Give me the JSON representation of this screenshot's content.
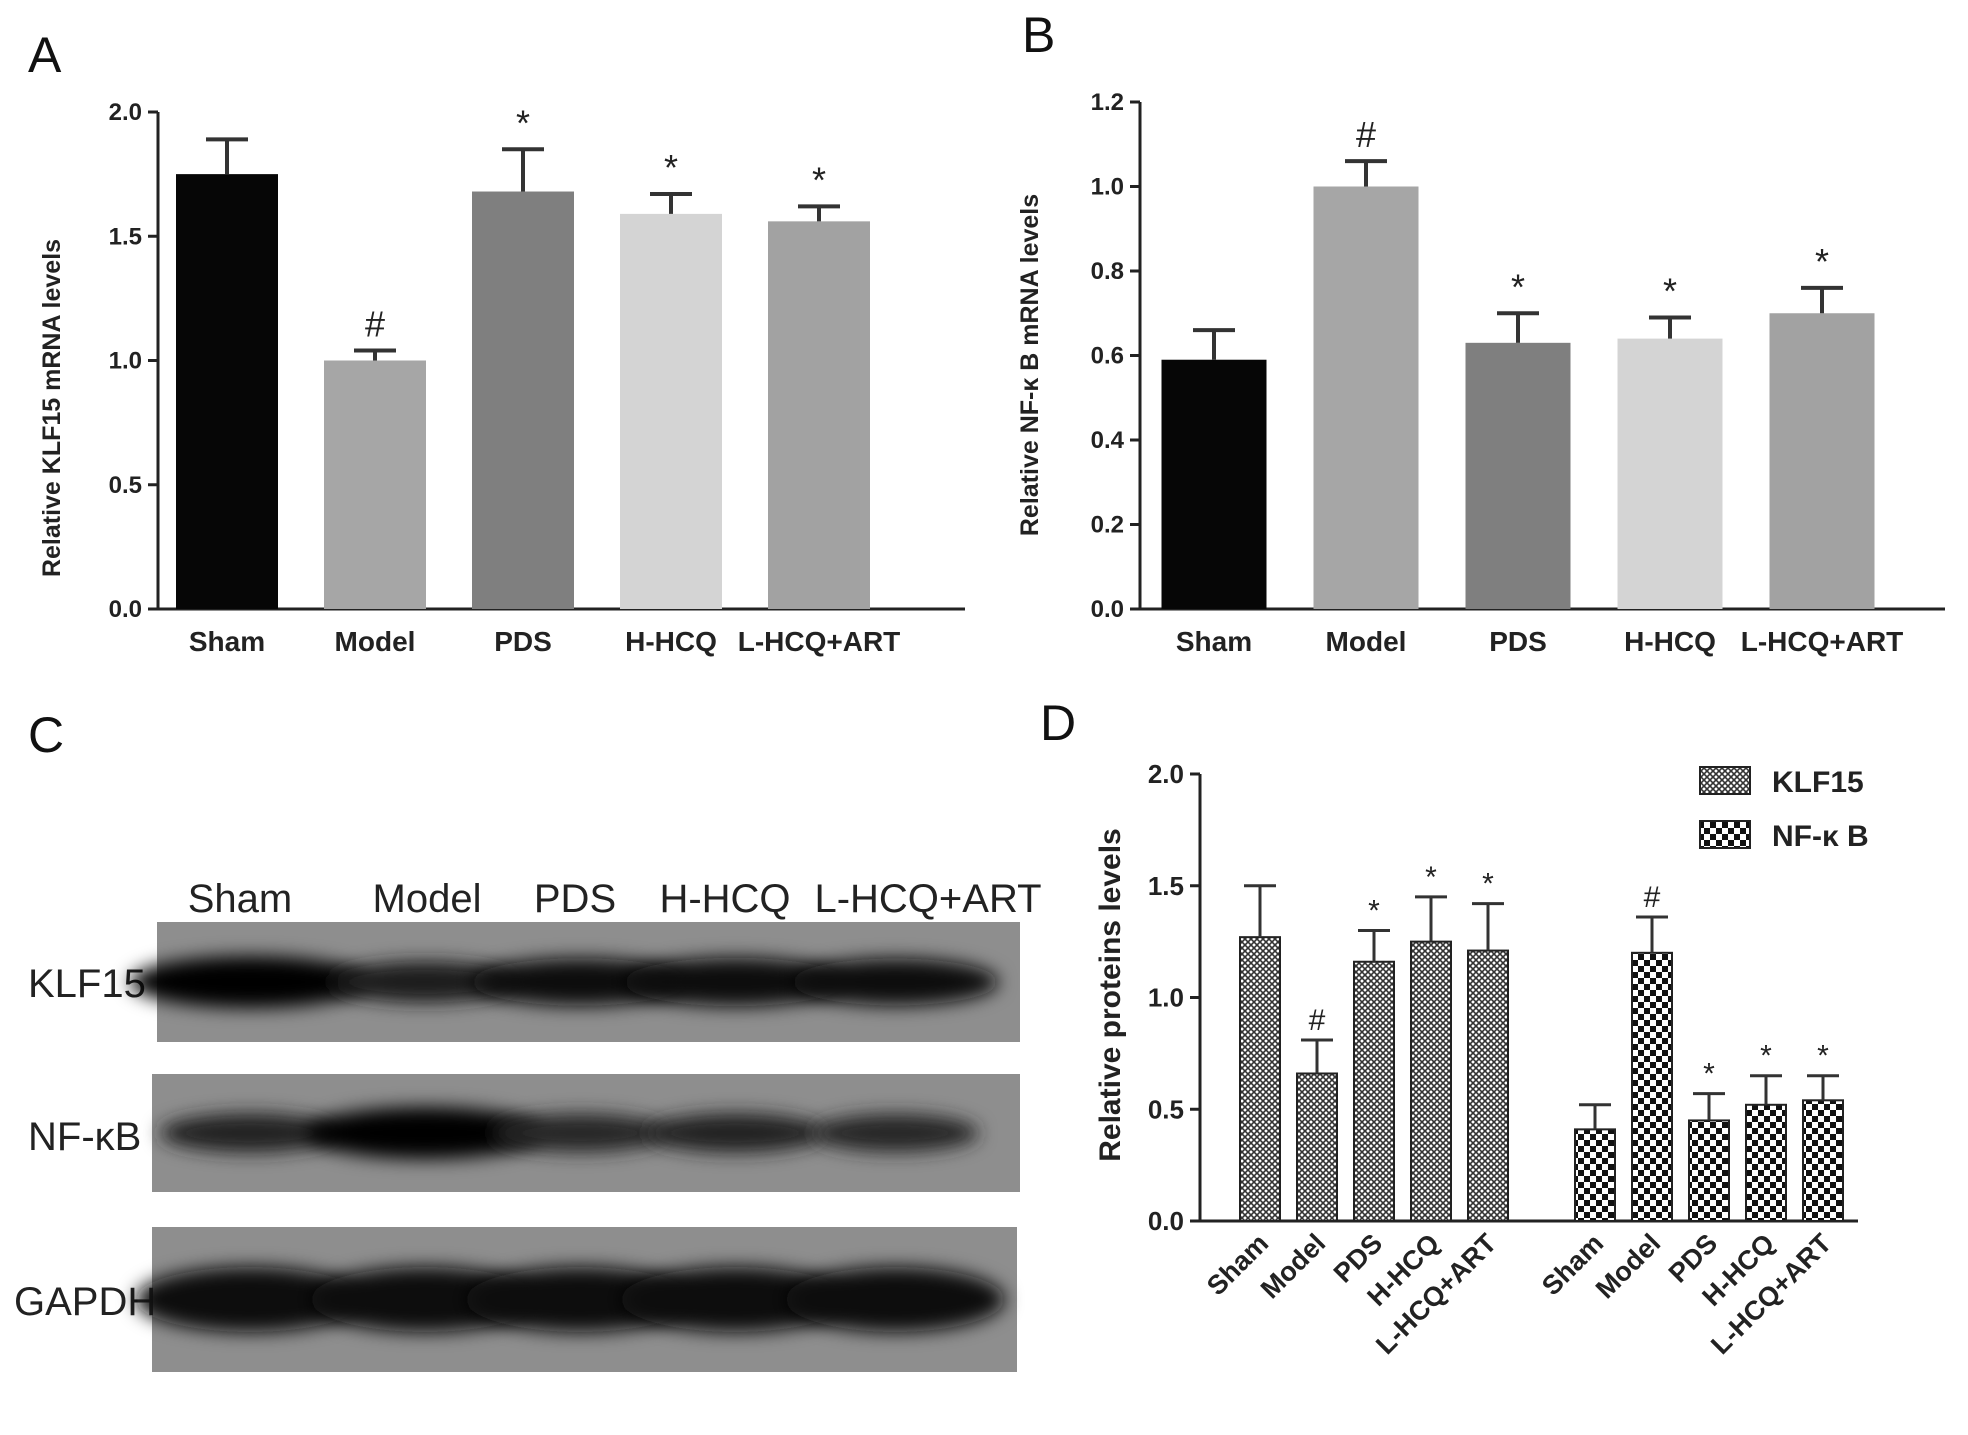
{
  "chart_data": [
    {
      "panel": "A",
      "type": "bar",
      "categories": [
        "Sham",
        "Model",
        "PDS",
        "H-HCQ",
        "L-HCQ+ART"
      ],
      "values": [
        1.75,
        1.0,
        1.68,
        1.59,
        1.56
      ],
      "errors": [
        0.14,
        0.04,
        0.17,
        0.08,
        0.06
      ],
      "annotations": [
        "",
        "#",
        "*",
        "*",
        "*"
      ],
      "colors": [
        "#060606",
        "#a6a6a6",
        "#7f7f7f",
        "#d4d4d4",
        "#a2a2a2"
      ],
      "xlabel": "",
      "ylabel": "Relative KLF15 mRNA levels",
      "ylim": [
        0,
        2.0
      ],
      "yticks": [
        "0.0",
        "0.5",
        "1.0",
        "1.5",
        "2.0"
      ],
      "ytick_values": [
        0,
        0.5,
        1.0,
        1.5,
        2.0
      ]
    },
    {
      "panel": "B",
      "type": "bar",
      "categories": [
        "Sham",
        "Model",
        "PDS",
        "H-HCQ",
        "L-HCQ+ART"
      ],
      "values": [
        0.59,
        1.0,
        0.63,
        0.64,
        0.7
      ],
      "errors": [
        0.07,
        0.06,
        0.07,
        0.05,
        0.06
      ],
      "annotations": [
        "",
        "#",
        "*",
        "*",
        "*"
      ],
      "colors": [
        "#060606",
        "#a6a6a6",
        "#7f7f7f",
        "#d4d4d4",
        "#a2a2a2"
      ],
      "xlabel": "",
      "ylabel": "Relative NF-κ B mRNA levels",
      "ylim": [
        0,
        1.2
      ],
      "yticks": [
        "0.0",
        "0.2",
        "0.4",
        "0.6",
        "0.8",
        "1.0",
        "1.2"
      ],
      "ytick_values": [
        0,
        0.2,
        0.4,
        0.6,
        0.8,
        1.0,
        1.2
      ]
    },
    {
      "panel": "D",
      "type": "bar",
      "categories": [
        "Sham",
        "Model",
        "PDS",
        "H-HCQ",
        "L-HCQ+ART"
      ],
      "series": [
        {
          "name": "KLF15",
          "values": [
            1.27,
            0.66,
            1.16,
            1.25,
            1.21
          ],
          "errors": [
            0.23,
            0.15,
            0.14,
            0.2,
            0.21
          ],
          "annotations": [
            "",
            "#",
            "*",
            "*",
            "*"
          ],
          "pattern": "fine-hatch"
        },
        {
          "name": "NF-κ B",
          "values": [
            0.41,
            1.2,
            0.45,
            0.52,
            0.54
          ],
          "errors": [
            0.11,
            0.16,
            0.12,
            0.13,
            0.11
          ],
          "annotations": [
            "",
            "#",
            "*",
            "*",
            "*"
          ],
          "pattern": "checker"
        }
      ],
      "xlabel": "",
      "ylabel": "Relative proteins levels",
      "ylim": [
        0,
        2.0
      ],
      "yticks": [
        "0.0",
        "0.5",
        "1.0",
        "1.5",
        "2.0"
      ],
      "ytick_values": [
        0,
        0.5,
        1.0,
        1.5,
        2.0
      ],
      "legend_placement": "top-right"
    }
  ],
  "panels": {
    "a_label": "A",
    "b_label": "B",
    "c_label": "C",
    "d_label": "D"
  },
  "blot": {
    "lanes": [
      "Sham",
      "Model",
      "PDS",
      "H-HCQ",
      "L-HCQ+ART"
    ],
    "rows": [
      {
        "label": "KLF15",
        "intensities": [
          1.0,
          0.55,
          0.8,
          0.85,
          0.78
        ]
      },
      {
        "label": "NF-κB",
        "intensities": [
          0.45,
          1.0,
          0.42,
          0.45,
          0.4
        ]
      },
      {
        "label": "GAPDH",
        "intensities": [
          0.9,
          0.9,
          0.9,
          0.9,
          0.9
        ]
      }
    ]
  }
}
